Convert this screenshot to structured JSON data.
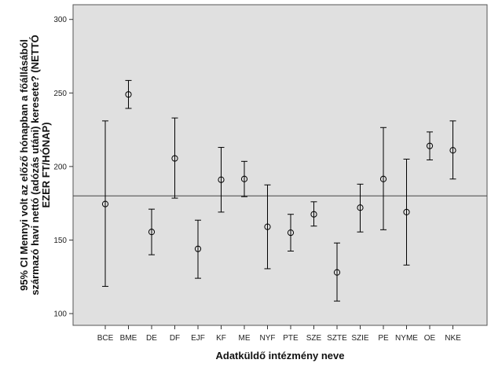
{
  "chart_data": {
    "type": "errorbar",
    "xlabel": "Adatküldő intézmény neve",
    "ylabel_lines": [
      "95% CI Mennyi volt az előző hónapban a főállásából",
      "származó havi nettó (adózás utáni) keresete? (NETTÓ",
      "EZER FT/HÓNAP)"
    ],
    "ylim": [
      92,
      310
    ],
    "yticks": [
      100,
      150,
      200,
      250,
      300
    ],
    "reference_line": 180,
    "grid": false,
    "categories": [
      "BCE",
      "BME",
      "DE",
      "DF",
      "EJF",
      "KF",
      "ME",
      "NYF",
      "PTE",
      "SZE",
      "SZTE",
      "SZIE",
      "PE",
      "NYME",
      "OE",
      "NKE"
    ],
    "series": [
      {
        "mean": [
          174.5,
          249,
          155.5,
          205.5,
          144,
          191,
          191.5,
          159,
          155,
          167.5,
          128,
          172,
          191.5,
          169,
          214,
          211
        ],
        "lower": [
          118.5,
          239.5,
          140,
          178.5,
          124,
          169,
          179.5,
          130.5,
          142.5,
          159.5,
          108.5,
          155.5,
          157,
          133,
          204.5,
          191.5
        ],
        "upper": [
          231,
          258.5,
          171,
          233,
          163.5,
          213,
          203.5,
          187.5,
          167.5,
          176,
          148,
          188,
          226.5,
          205,
          223.5,
          231
        ]
      }
    ],
    "colors": {
      "plot_background": "#e0e0e0",
      "marks": "#000000"
    }
  }
}
